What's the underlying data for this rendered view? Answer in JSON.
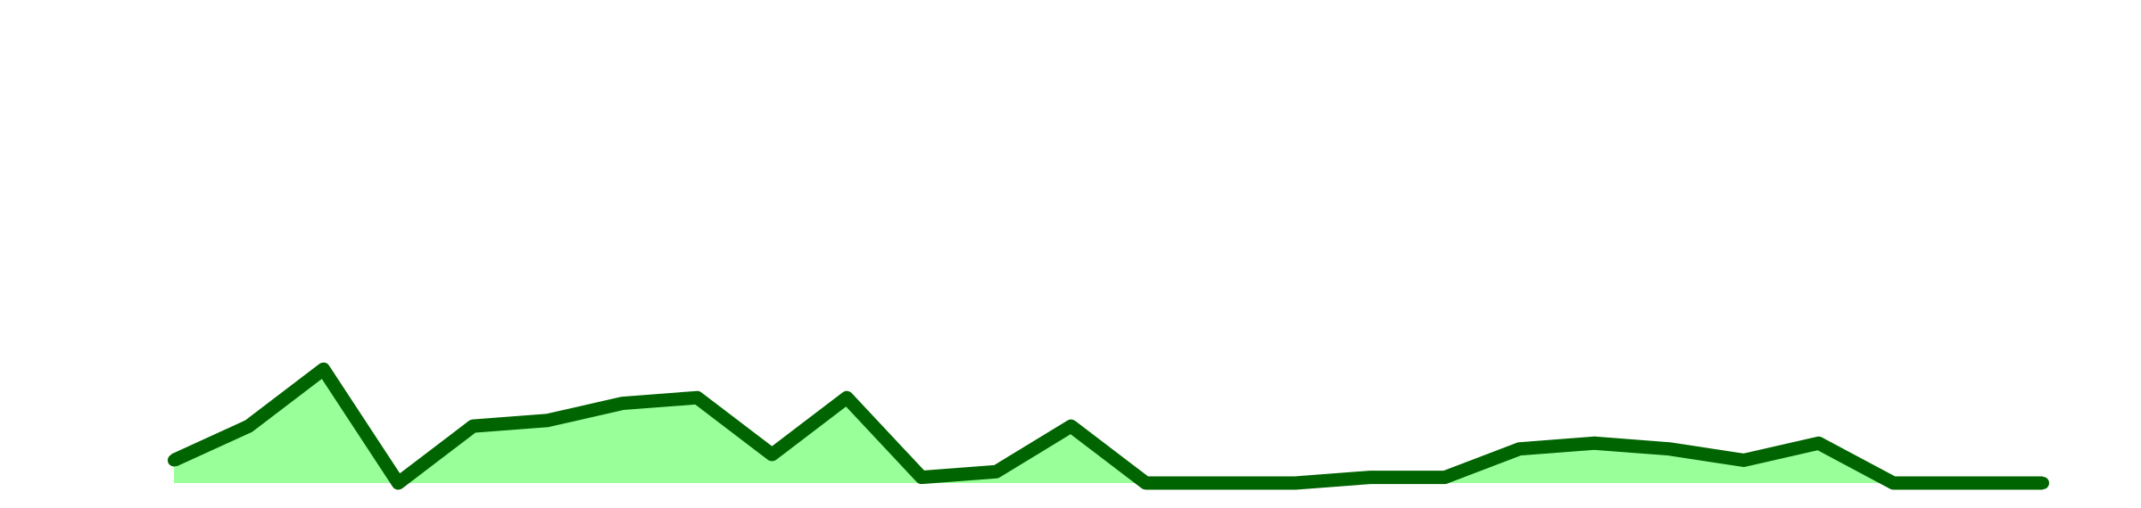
{
  "chart_data": {
    "type": "area",
    "x": [
      1,
      2,
      3,
      4,
      5,
      6,
      7,
      8,
      9,
      10,
      11,
      12,
      13,
      14,
      15,
      16,
      17,
      18,
      19,
      20,
      21,
      22,
      23,
      24,
      25,
      26
    ],
    "series": [
      {
        "values": [
          2,
          5,
          10,
          0,
          5,
          5.5,
          7,
          7.5,
          2.5,
          7.5,
          0.5,
          1,
          5,
          0,
          0,
          0,
          0.5,
          0.5,
          3,
          3.5,
          3,
          2,
          3.5,
          0,
          0,
          0
        ]
      }
    ],
    "ylim": [
      0,
      28
    ],
    "grid": false,
    "colors": {
      "line": "#006400",
      "fill": "#99ff99"
    }
  }
}
